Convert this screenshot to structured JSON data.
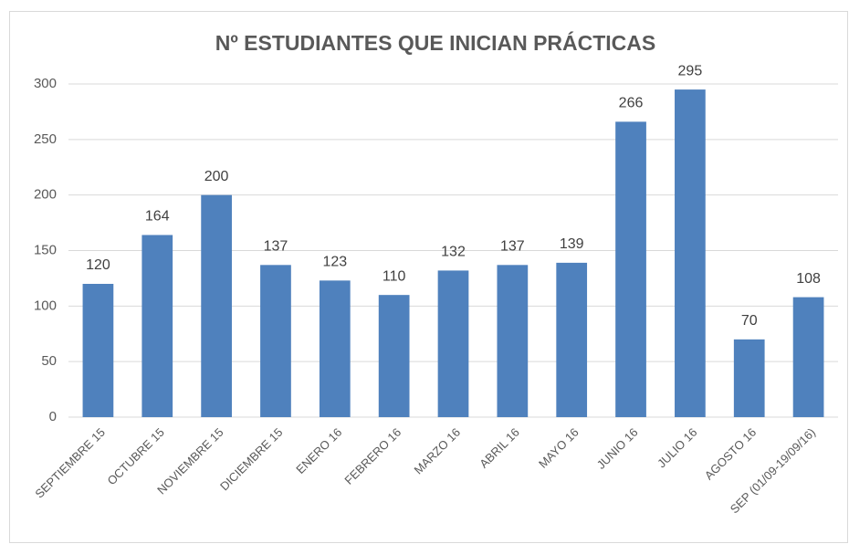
{
  "chart_data": {
    "type": "bar",
    "title": "Nº ESTUDIANTES QUE INICIAN PRÁCTICAS",
    "categories": [
      "SEPTIEMBRE 15",
      "OCTUBRE 15",
      "NOVIEMBRE 15",
      "DICIEMBRE 15",
      "ENERO 16",
      "FEBRERO 16",
      "MARZO 16",
      "ABRIL 16",
      "MAYO 16",
      "JUNIO 16",
      "JULIO 16",
      "AGOSTO 16",
      "SEP (01/09-19/09/16)"
    ],
    "values": [
      120,
      164,
      200,
      137,
      123,
      110,
      132,
      137,
      139,
      266,
      295,
      70,
      108
    ],
    "color": "#4f81bd",
    "ylim": [
      0,
      300
    ],
    "yticks": [
      0,
      50,
      100,
      150,
      200,
      250,
      300
    ],
    "grid": true
  }
}
